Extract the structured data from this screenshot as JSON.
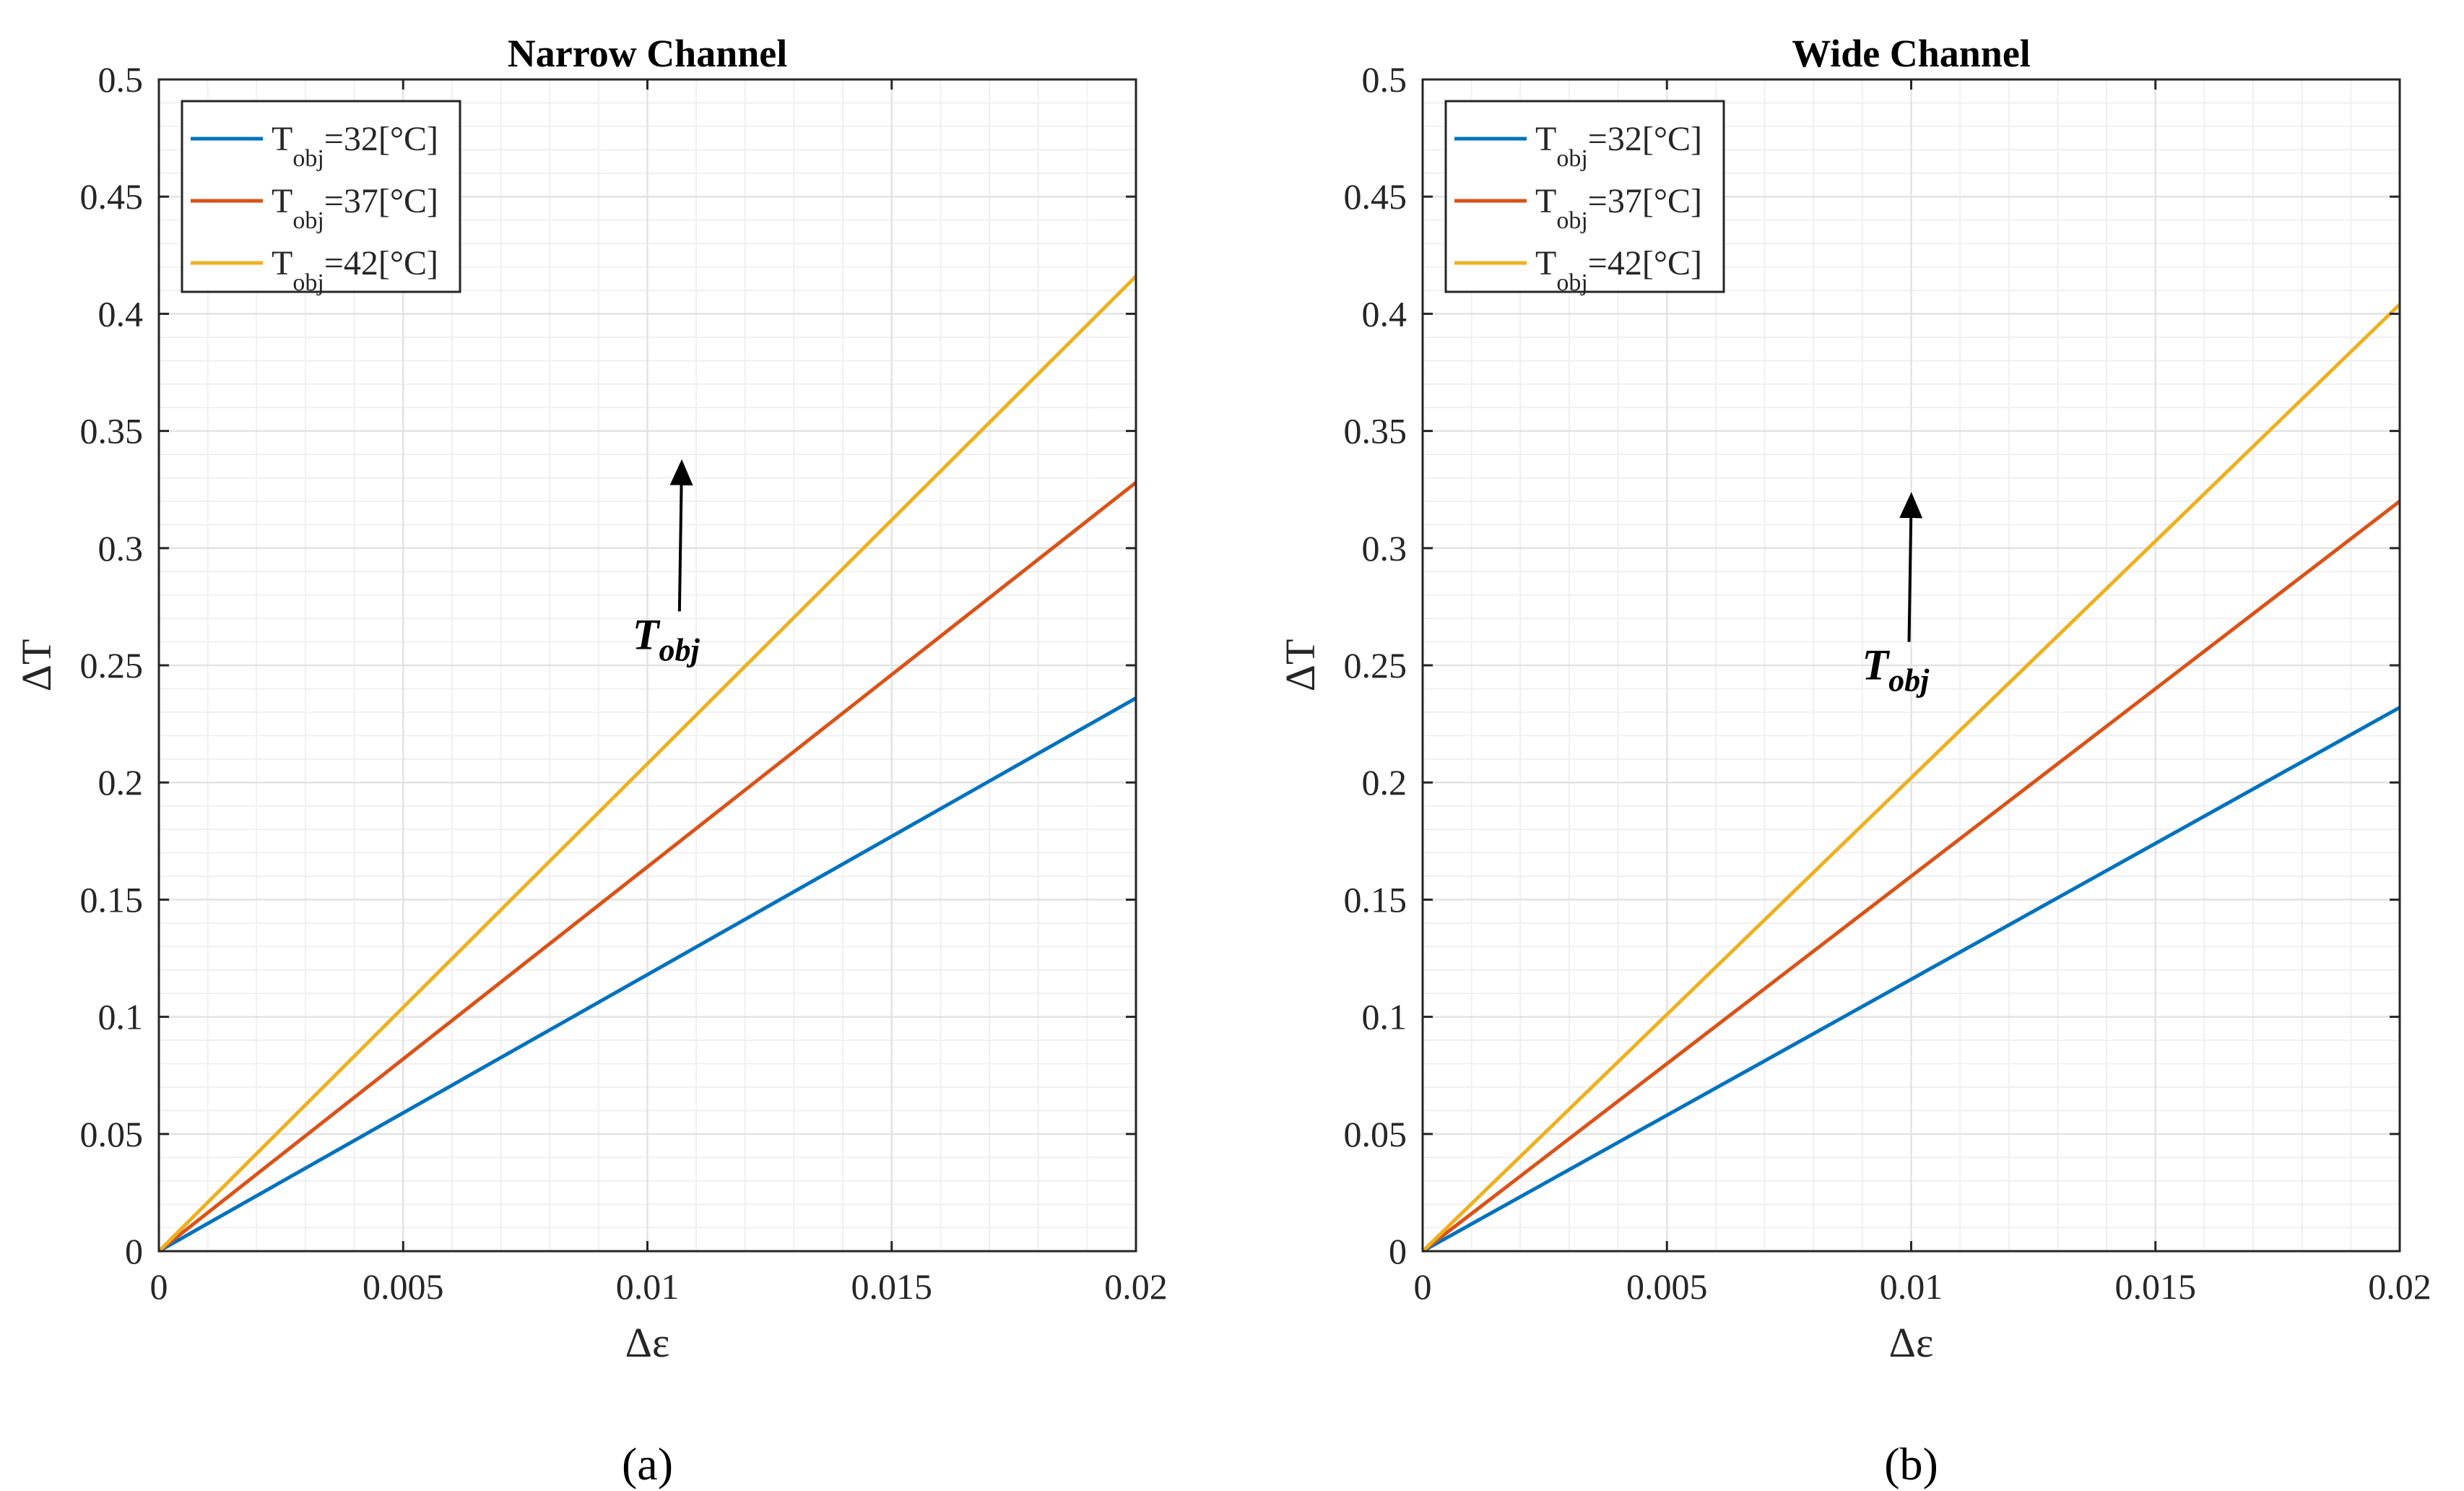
{
  "chart_data": [
    {
      "type": "line",
      "title": "Narrow Channel",
      "xlabel": "Δε",
      "ylabel": "ΔT",
      "xlim": [
        0,
        0.02
      ],
      "ylim": [
        0,
        0.5
      ],
      "xticks": [
        0,
        0.005,
        0.01,
        0.015,
        0.02
      ],
      "xtick_labels": [
        "0",
        "0.005",
        "0.01",
        "0.015",
        "0.02"
      ],
      "yticks": [
        0,
        0.05,
        0.1,
        0.15,
        0.2,
        0.25,
        0.3,
        0.35,
        0.4,
        0.45,
        0.5
      ],
      "ytick_labels": [
        "0",
        "0.05",
        "0.1",
        "0.15",
        "0.2",
        "0.25",
        "0.3",
        "0.35",
        "0.4",
        "0.45",
        "0.5"
      ],
      "grid": true,
      "legend_position": "top-left",
      "series": [
        {
          "name": "T_obj=32[°C]",
          "label_main": "T",
          "label_sub": "obj",
          "label_rest": "=32[°C]",
          "color": "#0072BD",
          "x": [
            0,
            0.02
          ],
          "y": [
            0,
            0.236
          ]
        },
        {
          "name": "T_obj=37[°C]",
          "label_main": "T",
          "label_sub": "obj",
          "label_rest": "=37[°C]",
          "color": "#D95319",
          "x": [
            0,
            0.02
          ],
          "y": [
            0,
            0.328
          ]
        },
        {
          "name": "T_obj=42[°C]",
          "label_main": "T",
          "label_sub": "obj",
          "label_rest": "=42[°C]",
          "color": "#EDB120",
          "x": [
            0,
            0.02
          ],
          "y": [
            0,
            0.416
          ]
        }
      ],
      "annotation": {
        "main": "T",
        "sub": "obj",
        "arrow_x": 0.0107,
        "arrow_from": 0.273,
        "arrow_to": 0.333
      },
      "panel_label": "(a)"
    },
    {
      "type": "line",
      "title": "Wide Channel",
      "xlabel": "Δε",
      "ylabel": "ΔT",
      "xlim": [
        0,
        0.02
      ],
      "ylim": [
        0,
        0.5
      ],
      "xticks": [
        0,
        0.005,
        0.01,
        0.015,
        0.02
      ],
      "xtick_labels": [
        "0",
        "0.005",
        "0.01",
        "0.015",
        "0.02"
      ],
      "yticks": [
        0,
        0.05,
        0.1,
        0.15,
        0.2,
        0.25,
        0.3,
        0.35,
        0.4,
        0.45,
        0.5
      ],
      "ytick_labels": [
        "0",
        "0.05",
        "0.1",
        "0.15",
        "0.2",
        "0.25",
        "0.3",
        "0.35",
        "0.4",
        "0.45",
        "0.5"
      ],
      "grid": true,
      "legend_position": "top-left",
      "series": [
        {
          "name": "T_obj=32[°C]",
          "label_main": "T",
          "label_sub": "obj",
          "label_rest": "=32[°C]",
          "color": "#0072BD",
          "x": [
            0,
            0.02
          ],
          "y": [
            0,
            0.232
          ]
        },
        {
          "name": "T_obj=37[°C]",
          "label_main": "T",
          "label_sub": "obj",
          "label_rest": "=37[°C]",
          "color": "#D95319",
          "x": [
            0,
            0.02
          ],
          "y": [
            0,
            0.32
          ]
        },
        {
          "name": "T_obj=42[°C]",
          "label_main": "T",
          "label_sub": "obj",
          "label_rest": "=42[°C]",
          "color": "#EDB120",
          "x": [
            0,
            0.02
          ],
          "y": [
            0,
            0.404
          ]
        }
      ],
      "annotation": {
        "main": "T",
        "sub": "obj",
        "arrow_x": 0.01,
        "arrow_from": 0.26,
        "arrow_to": 0.319
      },
      "panel_label": "(b)"
    }
  ]
}
